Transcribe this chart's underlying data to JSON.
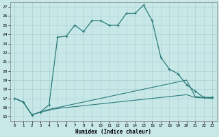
{
  "xlabel": "Humidex (Indice chaleur)",
  "bg_color": "#c8e8e8",
  "grid_color": "#b0d4d4",
  "line_color": "#2a7a7a",
  "xlim": [
    -0.5,
    23.5
  ],
  "ylim": [
    14.5,
    27.5
  ],
  "xticks": [
    0,
    1,
    2,
    3,
    4,
    5,
    6,
    7,
    8,
    9,
    10,
    11,
    12,
    13,
    14,
    15,
    16,
    17,
    18,
    19,
    20,
    21,
    22,
    23
  ],
  "yticks": [
    15,
    16,
    17,
    18,
    19,
    20,
    21,
    22,
    23,
    24,
    25,
    26,
    27
  ],
  "series_main": {
    "x": [
      0,
      1,
      2,
      3,
      4,
      5,
      6,
      7,
      8,
      9,
      10,
      11,
      12,
      13,
      14,
      15,
      16,
      17,
      18,
      19,
      20,
      21,
      22,
      23
    ],
    "y": [
      17.0,
      16.6,
      15.2,
      15.5,
      16.3,
      23.7,
      23.8,
      25.0,
      24.3,
      25.5,
      25.5,
      25.0,
      25.0,
      26.3,
      26.3,
      27.2,
      25.5,
      21.5,
      20.2,
      19.7,
      18.5,
      17.8,
      17.1,
      17.1
    ]
  },
  "series_line1": {
    "x": [
      0,
      1,
      2,
      3,
      4,
      5,
      6,
      7,
      8,
      9,
      10,
      11,
      12,
      13,
      14,
      15,
      16,
      17,
      18,
      19,
      20,
      21,
      22,
      23
    ],
    "y": [
      17.0,
      16.6,
      15.2,
      15.5,
      15.8,
      16.0,
      16.2,
      16.4,
      16.6,
      16.8,
      17.0,
      17.2,
      17.4,
      17.6,
      17.8,
      18.0,
      18.2,
      18.4,
      18.6,
      18.8,
      19.0,
      17.2,
      17.1,
      17.1
    ]
  },
  "series_line2": {
    "x": [
      0,
      1,
      2,
      3,
      4,
      5,
      6,
      7,
      8,
      9,
      10,
      11,
      12,
      13,
      14,
      15,
      16,
      17,
      18,
      19,
      20,
      21,
      22,
      23
    ],
    "y": [
      17.0,
      16.6,
      15.2,
      15.5,
      15.7,
      15.9,
      16.0,
      16.1,
      16.2,
      16.3,
      16.4,
      16.5,
      16.6,
      16.7,
      16.8,
      16.9,
      17.0,
      17.1,
      17.2,
      17.3,
      17.4,
      17.1,
      17.05,
      17.0
    ]
  }
}
